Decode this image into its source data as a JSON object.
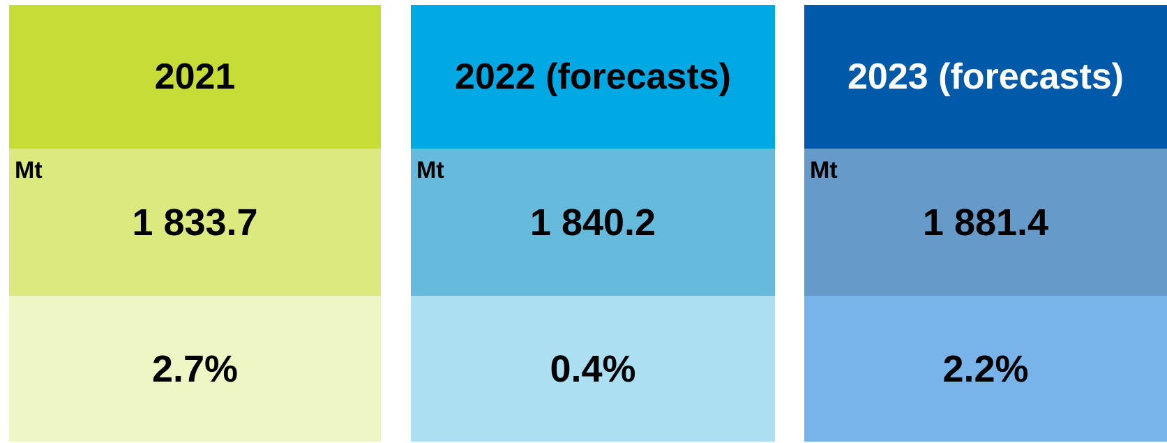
{
  "panels": [
    {
      "title": "2021",
      "unit": "Mt",
      "value": "1 833.7",
      "change": "2.7%"
    },
    {
      "title": "2022 (forecasts)",
      "unit": "Mt",
      "value": "1 840.2",
      "change": "0.4%"
    },
    {
      "title": "2023 (forecasts)",
      "unit": "Mt",
      "value": "1 881.4",
      "change": "2.2%"
    }
  ]
}
